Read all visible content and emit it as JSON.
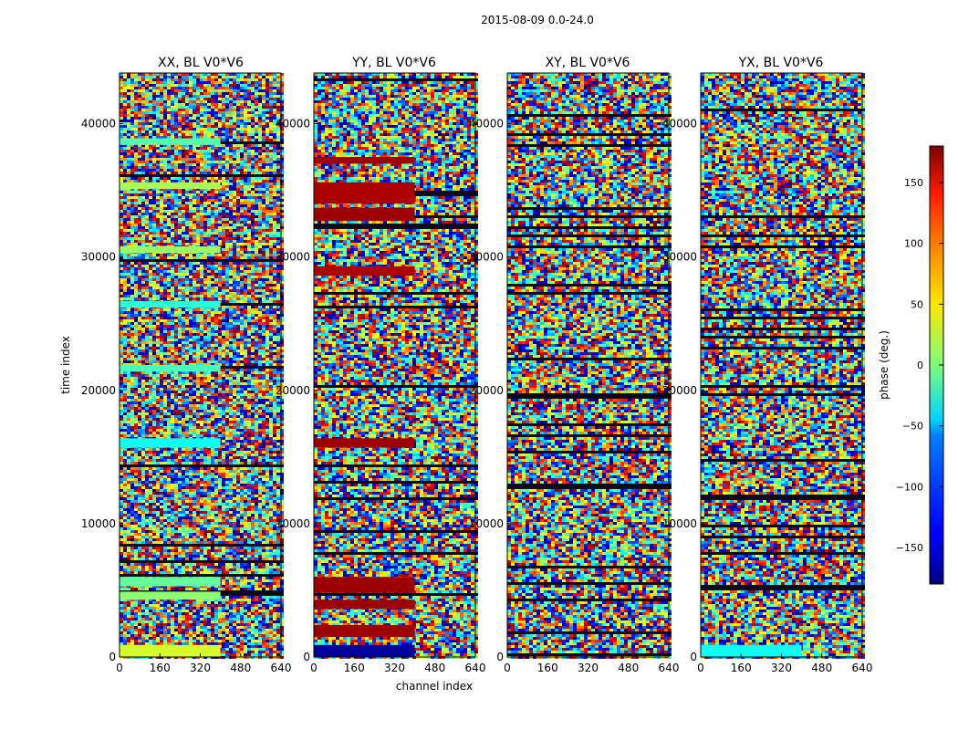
{
  "figure": {
    "suptitle": "2015-08-09 0.0-24.0"
  },
  "chart_data": [
    {
      "type": "heatmap",
      "title": "XX, BL V0*V6",
      "xlabel": "",
      "ylabel": "time index",
      "xticks": [
        0,
        160,
        320,
        480,
        640
      ],
      "yticks": [
        0,
        10000,
        20000,
        30000,
        40000
      ],
      "xlim": [
        0,
        640
      ],
      "ylim": [
        0,
        43800
      ],
      "colormap": "jet",
      "value_range": [
        -180,
        180
      ],
      "bands": [
        {
          "t0": 0,
          "t1": 900,
          "ch0": 0,
          "ch1": 400,
          "phase": 30
        },
        {
          "t0": 4300,
          "t1": 4900,
          "ch0": 0,
          "ch1": 400,
          "phase": 5
        },
        {
          "t0": 5300,
          "t1": 6000,
          "ch0": 0,
          "ch1": 400,
          "phase": -10
        },
        {
          "t0": 15700,
          "t1": 16400,
          "ch0": 0,
          "ch1": 400,
          "phase": -40
        },
        {
          "t0": 21400,
          "t1": 21900,
          "ch0": 0,
          "ch1": 400,
          "phase": -20
        },
        {
          "t0": 26200,
          "t1": 26700,
          "ch0": 0,
          "ch1": 400,
          "phase": -30
        },
        {
          "t0": 30300,
          "t1": 30800,
          "ch0": 0,
          "ch1": 400,
          "phase": 10
        },
        {
          "t0": 35100,
          "t1": 35600,
          "ch0": 0,
          "ch1": 400,
          "phase": 15
        },
        {
          "t0": 38400,
          "t1": 38900,
          "ch0": 0,
          "ch1": 400,
          "phase": -15
        }
      ]
    },
    {
      "type": "heatmap",
      "title": "YY, BL V0*V6",
      "xlabel": "channel index",
      "ylabel": "",
      "xticks": [
        0,
        160,
        320,
        480,
        640
      ],
      "yticks": [
        0,
        10000,
        20000,
        30000,
        40000
      ],
      "xlim": [
        0,
        640
      ],
      "ylim": [
        0,
        43800
      ],
      "colormap": "jet",
      "value_range": [
        -180,
        180
      ],
      "bands": [
        {
          "t0": 0,
          "t1": 900,
          "ch0": 0,
          "ch1": 400,
          "phase": -170
        },
        {
          "t0": 1500,
          "t1": 2400,
          "ch0": 0,
          "ch1": 400,
          "phase": 170
        },
        {
          "t0": 3600,
          "t1": 4300,
          "ch0": 0,
          "ch1": 400,
          "phase": 170
        },
        {
          "t0": 4800,
          "t1": 6000,
          "ch0": 0,
          "ch1": 400,
          "phase": 170
        },
        {
          "t0": 15700,
          "t1": 16400,
          "ch0": 0,
          "ch1": 400,
          "phase": 170
        },
        {
          "t0": 28600,
          "t1": 29300,
          "ch0": 0,
          "ch1": 400,
          "phase": 165
        },
        {
          "t0": 32700,
          "t1": 33700,
          "ch0": 0,
          "ch1": 400,
          "phase": 170
        },
        {
          "t0": 34000,
          "t1": 35600,
          "ch0": 0,
          "ch1": 400,
          "phase": 165
        },
        {
          "t0": 37000,
          "t1": 37500,
          "ch0": 0,
          "ch1": 400,
          "phase": 170
        }
      ]
    },
    {
      "type": "heatmap",
      "title": "XY, BL V0*V6",
      "xlabel": "",
      "ylabel": "",
      "xticks": [
        0,
        160,
        320,
        480,
        640
      ],
      "yticks": [
        0,
        10000,
        20000,
        30000,
        40000
      ],
      "xlim": [
        0,
        640
      ],
      "ylim": [
        0,
        43800
      ],
      "colormap": "jet",
      "value_range": [
        -180,
        180
      ],
      "bands": []
    },
    {
      "type": "heatmap",
      "title": "YX, BL V0*V6",
      "xlabel": "",
      "ylabel": "",
      "xticks": [
        0,
        160,
        320,
        480,
        640
      ],
      "yticks": [
        0,
        10000,
        20000,
        30000,
        40000
      ],
      "xlim": [
        0,
        640
      ],
      "ylim": [
        0,
        43800
      ],
      "colormap": "jet",
      "value_range": [
        -180,
        180
      ],
      "bands": [
        {
          "t0": 0,
          "t1": 900,
          "ch0": 0,
          "ch1": 400,
          "phase": -40
        }
      ]
    }
  ],
  "colorbar": {
    "label": "phase (deg.)",
    "ticks": [
      -150,
      -100,
      -50,
      0,
      50,
      100,
      150
    ],
    "range": [
      -180,
      180
    ],
    "colormap": "jet"
  }
}
